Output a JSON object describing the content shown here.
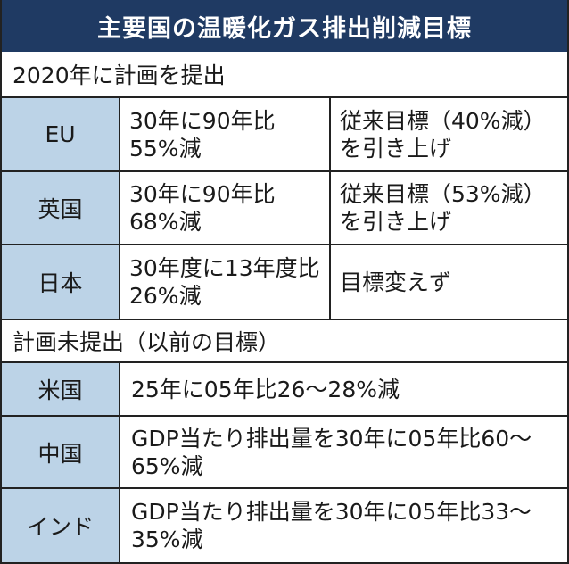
{
  "title": "主要国の温暖化ガス排出削減目標",
  "colors": {
    "title_bg": "#1f3a63",
    "label_bg": "#bcd3e7"
  },
  "sections": [
    {
      "heading": "2020年に計画を提出",
      "rows": [
        {
          "country": "EU",
          "target": "30年に90年比55%減",
          "note": "従来目標（40%減）を引き上げ"
        },
        {
          "country": "英国",
          "target": "30年に90年比68%減",
          "note": "従来目標（53%減）を引き上げ"
        },
        {
          "country": "日本",
          "target": "30年度に13年度比26%減",
          "note": "目標変えず"
        }
      ]
    },
    {
      "heading": "計画未提出（以前の目標）",
      "rows": [
        {
          "country": "米国",
          "target": "25年に05年比26〜28%減"
        },
        {
          "country": "中国",
          "target": "GDP当たり排出量を30年に05年比60〜65%減"
        },
        {
          "country": "インド",
          "target": "GDP当たり排出量を30年に05年比33〜35%減"
        }
      ]
    }
  ]
}
